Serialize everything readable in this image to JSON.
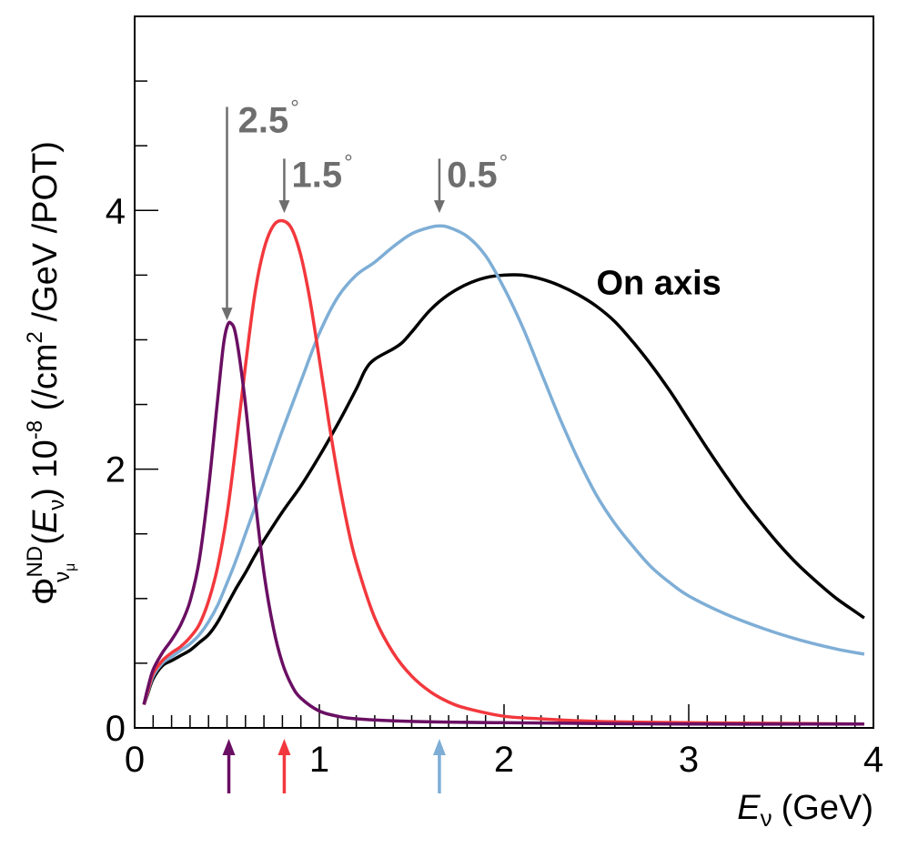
{
  "chart_data": {
    "type": "line",
    "xlabel": {
      "symbol": "E",
      "sub": "ν",
      "unit": "(GeV)"
    },
    "ylabel": {
      "phi": "Φ",
      "sup": "ND",
      "sub": "ν",
      "subsub": "μ",
      "arg_open": "(",
      "arg_E": "E",
      "arg_sub": "ν",
      "arg_close": ")",
      "factor": " 10",
      "factor_exp": "-8",
      "unit_a": " (/cm",
      "unit_exp": "2",
      "unit_b": " /GeV /POT)"
    },
    "xlim": [
      0,
      4
    ],
    "ylim": [
      0,
      5.5
    ],
    "x_ticks": [
      {
        "value": 0,
        "label": "0"
      },
      {
        "value": 1,
        "label": "1"
      },
      {
        "value": 2,
        "label": "2"
      },
      {
        "value": 3,
        "label": "3"
      },
      {
        "value": 4,
        "label": "4"
      }
    ],
    "y_ticks": [
      {
        "value": 0,
        "label": "0"
      },
      {
        "value": 2,
        "label": "2"
      },
      {
        "value": 4,
        "label": "4"
      }
    ],
    "x_minor_step": 0.1,
    "y_minor_step": 0.5,
    "series": [
      {
        "color": "#000000",
        "points": [
          [
            0.05,
            0.18
          ],
          [
            0.07,
            0.26
          ],
          [
            0.1,
            0.38
          ],
          [
            0.15,
            0.48
          ],
          [
            0.2,
            0.52
          ],
          [
            0.25,
            0.56
          ],
          [
            0.3,
            0.6
          ],
          [
            0.35,
            0.66
          ],
          [
            0.4,
            0.72
          ],
          [
            0.45,
            0.82
          ],
          [
            0.5,
            0.95
          ],
          [
            0.55,
            1.08
          ],
          [
            0.6,
            1.2
          ],
          [
            0.65,
            1.33
          ],
          [
            0.7,
            1.45
          ],
          [
            0.8,
            1.67
          ],
          [
            0.9,
            1.87
          ],
          [
            1.0,
            2.1
          ],
          [
            1.1,
            2.35
          ],
          [
            1.2,
            2.62
          ],
          [
            1.25,
            2.77
          ],
          [
            1.3,
            2.85
          ],
          [
            1.4,
            2.93
          ],
          [
            1.45,
            2.98
          ],
          [
            1.5,
            3.06
          ],
          [
            1.6,
            3.23
          ],
          [
            1.7,
            3.35
          ],
          [
            1.8,
            3.43
          ],
          [
            1.9,
            3.48
          ],
          [
            2.0,
            3.5
          ],
          [
            2.1,
            3.5
          ],
          [
            2.2,
            3.47
          ],
          [
            2.3,
            3.42
          ],
          [
            2.4,
            3.35
          ],
          [
            2.5,
            3.26
          ],
          [
            2.6,
            3.14
          ],
          [
            2.7,
            2.98
          ],
          [
            2.8,
            2.8
          ],
          [
            2.9,
            2.6
          ],
          [
            3.0,
            2.38
          ],
          [
            3.1,
            2.16
          ],
          [
            3.2,
            1.95
          ],
          [
            3.3,
            1.75
          ],
          [
            3.4,
            1.57
          ],
          [
            3.5,
            1.4
          ],
          [
            3.6,
            1.25
          ],
          [
            3.7,
            1.12
          ],
          [
            3.8,
            1.0
          ],
          [
            3.9,
            0.9
          ],
          [
            3.95,
            0.85
          ]
        ]
      },
      {
        "color": "#7eaed6",
        "points": [
          [
            0.05,
            0.18
          ],
          [
            0.07,
            0.27
          ],
          [
            0.1,
            0.4
          ],
          [
            0.15,
            0.5
          ],
          [
            0.2,
            0.55
          ],
          [
            0.25,
            0.6
          ],
          [
            0.3,
            0.65
          ],
          [
            0.35,
            0.72
          ],
          [
            0.4,
            0.82
          ],
          [
            0.45,
            0.95
          ],
          [
            0.5,
            1.12
          ],
          [
            0.55,
            1.3
          ],
          [
            0.6,
            1.5
          ],
          [
            0.65,
            1.7
          ],
          [
            0.7,
            1.9
          ],
          [
            0.8,
            2.3
          ],
          [
            0.9,
            2.68
          ],
          [
            1.0,
            3.05
          ],
          [
            1.1,
            3.33
          ],
          [
            1.2,
            3.5
          ],
          [
            1.3,
            3.6
          ],
          [
            1.4,
            3.72
          ],
          [
            1.5,
            3.82
          ],
          [
            1.6,
            3.87
          ],
          [
            1.65,
            3.88
          ],
          [
            1.7,
            3.87
          ],
          [
            1.8,
            3.8
          ],
          [
            1.9,
            3.65
          ],
          [
            2.0,
            3.4
          ],
          [
            2.1,
            3.1
          ],
          [
            2.2,
            2.75
          ],
          [
            2.3,
            2.4
          ],
          [
            2.4,
            2.08
          ],
          [
            2.5,
            1.8
          ],
          [
            2.6,
            1.58
          ],
          [
            2.7,
            1.4
          ],
          [
            2.8,
            1.24
          ],
          [
            2.9,
            1.12
          ],
          [
            3.0,
            1.02
          ],
          [
            3.2,
            0.88
          ],
          [
            3.4,
            0.77
          ],
          [
            3.6,
            0.68
          ],
          [
            3.8,
            0.61
          ],
          [
            3.95,
            0.57
          ]
        ]
      },
      {
        "color": "#f2383d",
        "points": [
          [
            0.05,
            0.18
          ],
          [
            0.07,
            0.28
          ],
          [
            0.1,
            0.42
          ],
          [
            0.15,
            0.52
          ],
          [
            0.2,
            0.58
          ],
          [
            0.25,
            0.63
          ],
          [
            0.3,
            0.7
          ],
          [
            0.35,
            0.8
          ],
          [
            0.4,
            0.98
          ],
          [
            0.45,
            1.25
          ],
          [
            0.5,
            1.65
          ],
          [
            0.55,
            2.2
          ],
          [
            0.6,
            2.8
          ],
          [
            0.65,
            3.35
          ],
          [
            0.7,
            3.7
          ],
          [
            0.75,
            3.88
          ],
          [
            0.8,
            3.92
          ],
          [
            0.85,
            3.86
          ],
          [
            0.9,
            3.65
          ],
          [
            0.95,
            3.3
          ],
          [
            1.0,
            2.85
          ],
          [
            1.05,
            2.38
          ],
          [
            1.1,
            1.95
          ],
          [
            1.15,
            1.58
          ],
          [
            1.2,
            1.28
          ],
          [
            1.3,
            0.85
          ],
          [
            1.4,
            0.58
          ],
          [
            1.5,
            0.4
          ],
          [
            1.6,
            0.28
          ],
          [
            1.7,
            0.2
          ],
          [
            1.8,
            0.15
          ],
          [
            2.0,
            0.09
          ],
          [
            2.2,
            0.07
          ],
          [
            2.5,
            0.05
          ],
          [
            3.0,
            0.04
          ],
          [
            3.5,
            0.035
          ],
          [
            3.95,
            0.03
          ]
        ]
      },
      {
        "color": "#6a0f63",
        "points": [
          [
            0.05,
            0.18
          ],
          [
            0.07,
            0.3
          ],
          [
            0.1,
            0.45
          ],
          [
            0.15,
            0.58
          ],
          [
            0.2,
            0.68
          ],
          [
            0.25,
            0.8
          ],
          [
            0.3,
            0.98
          ],
          [
            0.35,
            1.3
          ],
          [
            0.4,
            1.85
          ],
          [
            0.45,
            2.55
          ],
          [
            0.48,
            2.95
          ],
          [
            0.5,
            3.1
          ],
          [
            0.52,
            3.13
          ],
          [
            0.55,
            3.02
          ],
          [
            0.6,
            2.5
          ],
          [
            0.65,
            1.8
          ],
          [
            0.7,
            1.2
          ],
          [
            0.75,
            0.78
          ],
          [
            0.8,
            0.5
          ],
          [
            0.85,
            0.33
          ],
          [
            0.9,
            0.23
          ],
          [
            1.0,
            0.13
          ],
          [
            1.1,
            0.09
          ],
          [
            1.2,
            0.07
          ],
          [
            1.5,
            0.05
          ],
          [
            2.0,
            0.04
          ],
          [
            3.0,
            0.03
          ],
          [
            3.95,
            0.03
          ]
        ]
      }
    ],
    "annotations": [
      {
        "label": "2.5",
        "deg": "°",
        "color": "#6e6e6e",
        "x": 0.5,
        "y_from": 4.8,
        "y_to": 3.15,
        "label_x": 0.56,
        "label_y": 4.7
      },
      {
        "label": "1.5",
        "deg": "°",
        "color": "#6e6e6e",
        "x": 0.81,
        "y_from": 4.4,
        "y_to": 3.98,
        "label_x": 0.85,
        "label_y": 4.28
      },
      {
        "label": "0.5",
        "deg": "°",
        "color": "#6e6e6e",
        "x": 1.65,
        "y_from": 4.4,
        "y_to": 3.98,
        "label_x": 1.69,
        "label_y": 4.28
      }
    ],
    "text_label": {
      "text": "On axis",
      "x": 2.5,
      "y": 3.45
    },
    "bottom_arrows": [
      {
        "x": 0.51,
        "color": "#6a0f63"
      },
      {
        "x": 0.81,
        "color": "#f2383d"
      },
      {
        "x": 1.65,
        "color": "#7eaed6"
      }
    ]
  }
}
